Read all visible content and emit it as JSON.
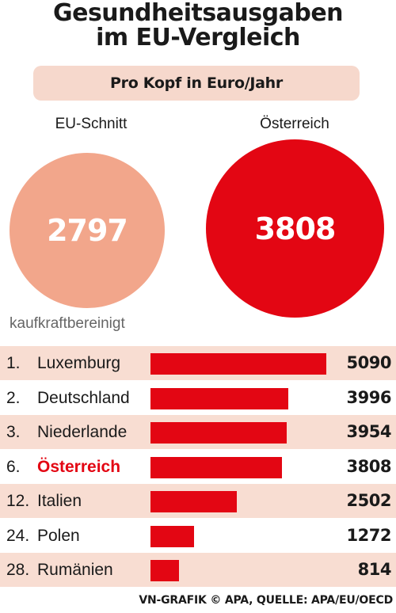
{
  "title_line1": "Gesundheitsausgaben",
  "title_line2": "im EU-Vergleich",
  "subtitle": "Pro Kopf in Euro/Jahr",
  "circles": [
    {
      "label": "EU-Schnitt",
      "value": "2797",
      "color": "#f2a68b"
    },
    {
      "label": "Österreich",
      "value": "3808",
      "color": "#e30613"
    }
  ],
  "note": "kaufkraftbereinigt",
  "source": "VN-GRAFIK © APA, QUELLE: APA/EU/OECD",
  "colors": {
    "bar": "#e30613",
    "highlight": "#e30613",
    "row_shade": "#f8ddd2"
  },
  "chart_data": {
    "type": "bar",
    "orientation": "horizontal",
    "ranks": [
      "1.",
      "2.",
      "3.",
      "6.",
      "12.",
      "24.",
      "28."
    ],
    "categories": [
      "Luxemburg",
      "Deutschland",
      "Niederlande",
      "Österreich",
      "Italien",
      "Polen",
      "Rumänien"
    ],
    "values": [
      5090,
      3996,
      3954,
      3808,
      2502,
      1272,
      814
    ],
    "value_labels": [
      "5090",
      "3996",
      "3954",
      "3808",
      "2502",
      "1272",
      "814"
    ],
    "highlight": "Österreich"
  }
}
